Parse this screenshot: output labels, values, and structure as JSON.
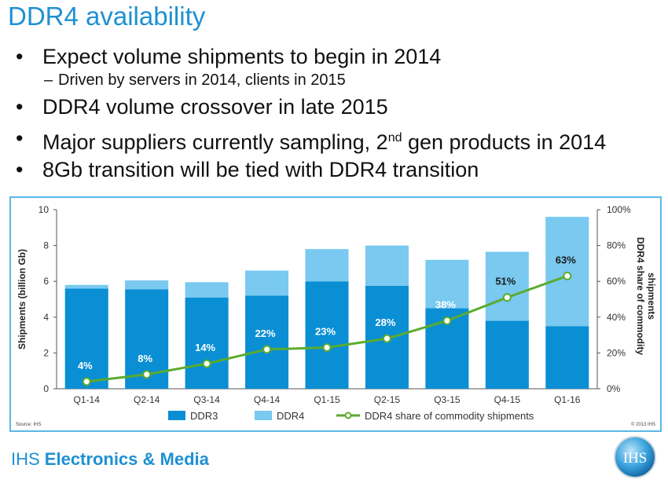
{
  "slide": {
    "title": "DDR4 availability",
    "bullets": [
      {
        "text": "Expect volume shipments to begin in 2014",
        "sub": "Driven by servers in 2014, clients in 2015"
      },
      {
        "text": "DDR4 volume crossover in late 2015"
      },
      {
        "pre": "Major suppliers currently sampling, 2",
        "sup": "nd",
        "post": " gen products in 2014"
      },
      {
        "text": "8Gb transition will be tied with DDR4 transition"
      }
    ],
    "bullet_glyph": "•",
    "sub_glyph": "–"
  },
  "footer": {
    "brand_light": "IHS ",
    "brand_bold": "Electronics & Media",
    "logo_text": "IHS"
  },
  "chart_data": {
    "type": "bar",
    "stacked": true,
    "categories": [
      "Q1-14",
      "Q2-14",
      "Q3-14",
      "Q4-14",
      "Q1-15",
      "Q2-15",
      "Q3-15",
      "Q4-15",
      "Q1-16"
    ],
    "series": [
      {
        "name": "DDR3",
        "color": "#0a8fd4",
        "values": [
          5.6,
          5.55,
          5.1,
          5.2,
          6.0,
          5.75,
          4.5,
          3.8,
          3.5
        ]
      },
      {
        "name": "DDR4",
        "color": "#79c9f0",
        "values": [
          0.2,
          0.5,
          0.85,
          1.4,
          1.8,
          2.25,
          2.7,
          3.85,
          6.1
        ]
      }
    ],
    "line_series": {
      "name": "DDR4 share of commodity shipments",
      "color": "#5aab2e",
      "values": [
        4,
        8,
        14,
        22,
        23,
        28,
        38,
        51,
        63
      ],
      "labels": [
        "4%",
        "8%",
        "14%",
        "22%",
        "23%",
        "28%",
        "38%",
        "51%",
        "63%"
      ]
    },
    "ylabel": "Shipments (billion Gb)",
    "ylim": [
      0,
      10
    ],
    "yticks": [
      "0",
      "2",
      "4",
      "6",
      "8",
      "10"
    ],
    "y2label": "DDR4 share of commodity shipments",
    "y2lim": [
      0,
      100
    ],
    "y2ticks": [
      "0%",
      "20%",
      "40%",
      "60%",
      "80%",
      "100%"
    ],
    "legend_position": "bottom",
    "grid": false,
    "source": "Source: IHS",
    "copyright": "© 2013 IHS"
  }
}
